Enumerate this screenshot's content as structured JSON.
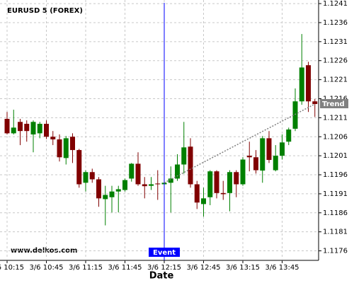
{
  "chart_data": {
    "type": "candlestick",
    "title": "EURUSD 5 (FOREX)",
    "xlabel": "Date",
    "watermark": "www.delkos.com",
    "x": [
      "3/6 10:15",
      "3/6 10:20",
      "3/6 10:25",
      "3/6 10:30",
      "3/6 10:35",
      "3/6 10:40",
      "3/6 10:45",
      "3/6 10:50",
      "3/6 10:55",
      "3/6 11:00",
      "3/6 11:05",
      "3/6 11:10",
      "3/6 11:15",
      "3/6 11:20",
      "3/6 11:25",
      "3/6 11:30",
      "3/6 11:35",
      "3/6 11:40",
      "3/6 11:45",
      "3/6 11:50",
      "3/6 11:55",
      "3/6 12:00",
      "3/6 12:05",
      "3/6 12:10",
      "3/6 12:15",
      "3/6 12:20",
      "3/6 12:25",
      "3/6 12:30",
      "3/6 12:35",
      "3/6 12:40",
      "3/6 12:45",
      "3/6 12:50",
      "3/6 12:55",
      "3/6 13:00",
      "3/6 13:05",
      "3/6 13:10",
      "3/6 13:15",
      "3/6 13:20",
      "3/6 13:25",
      "3/6 13:30",
      "3/6 13:35",
      "3/6 13:40",
      "3/6 13:45",
      "3/6 13:50",
      "3/6 13:55",
      "3/6 14:00",
      "3/6 14:05",
      "3/6 14:10"
    ],
    "open": [
      1.12107,
      1.12069,
      1.12099,
      1.12094,
      1.12066,
      1.12069,
      1.12094,
      1.1206,
      1.12053,
      1.12004,
      1.1206,
      1.12025,
      1.11939,
      1.11967,
      1.11948,
      1.11896,
      1.11901,
      1.11916,
      1.1192,
      1.1195,
      1.11989,
      1.11935,
      1.11931,
      1.11937,
      1.11935,
      1.11939,
      1.1195,
      1.11987,
      1.12034,
      1.11935,
      1.11883,
      1.11901,
      1.11969,
      1.11912,
      1.11912,
      1.11967,
      1.11935,
      1.1201,
      1.12006,
      1.11971,
      1.12056,
      1.11972,
      1.1201,
      1.12047,
      1.12081,
      1.12153,
      1.12248,
      1.12153
    ],
    "high": [
      1.12125,
      1.12131,
      1.12107,
      1.12103,
      1.12103,
      1.12099,
      1.12103,
      1.12075,
      1.12066,
      1.12062,
      1.12069,
      1.12028,
      1.11972,
      1.11976,
      1.11954,
      1.11931,
      1.11931,
      1.11931,
      1.1195,
      1.11991,
      1.12019,
      1.11954,
      1.11954,
      1.11972,
      1.11944,
      1.11982,
      1.12014,
      1.12099,
      1.12056,
      1.11944,
      1.11926,
      1.11972,
      1.11972,
      1.11944,
      1.11972,
      1.11972,
      1.12006,
      1.12047,
      1.12025,
      1.12062,
      1.12075,
      1.12038,
      1.12066,
      1.12084,
      1.12187,
      1.1233,
      1.12257,
      1.12159
    ],
    "low": [
      1.12066,
      1.12066,
      1.12038,
      1.12047,
      1.12019,
      1.12056,
      1.12054,
      1.12038,
      1.11995,
      1.11987,
      1.11991,
      1.11926,
      1.11916,
      1.11939,
      1.11876,
      1.11827,
      1.11861,
      1.11861,
      1.11916,
      1.11942,
      1.11931,
      1.11898,
      1.1192,
      1.11894,
      1.11931,
      1.11861,
      1.11944,
      1.11963,
      1.11926,
      1.1187,
      1.1185,
      1.1188,
      1.11898,
      1.11894,
      1.11864,
      1.11901,
      1.11931,
      1.11969,
      1.11963,
      1.11939,
      1.11991,
      1.11969,
      1.12,
      1.12038,
      1.12075,
      1.12144,
      1.12125,
      1.12112
    ],
    "close": [
      1.12069,
      1.12084,
      1.12075,
      1.12075,
      1.12099,
      1.12094,
      1.1206,
      1.12053,
      1.12006,
      1.12056,
      1.12025,
      1.11935,
      1.11967,
      1.11948,
      1.11898,
      1.11907,
      1.11916,
      1.11922,
      1.11946,
      1.11989,
      1.11935,
      1.1193,
      1.11935,
      1.11935,
      1.11939,
      1.1195,
      1.11987,
      1.12032,
      1.11935,
      1.11887,
      1.11898,
      1.11969,
      1.11912,
      1.11909,
      1.11967,
      1.11935,
      1.12,
      1.12006,
      1.11972,
      1.12056,
      1.11999,
      1.1201,
      1.12045,
      1.12079,
      1.12153,
      1.12242,
      1.12153,
      1.12146
    ],
    "up_color": "#008000",
    "down_color": "#800000",
    "ylim": [
      1.11735,
      1.12412
    ],
    "yticks": [
      1.1241,
      1.1236,
      1.1231,
      1.1226,
      1.1221,
      1.1216,
      1.1211,
      1.1206,
      1.1201,
      1.1196,
      1.1191,
      1.1186,
      1.1181,
      1.1176
    ],
    "xticks": [
      "3/6 10:15",
      "3/6 10:45",
      "3/6 11:15",
      "3/6 11:45",
      "3/6 12:15",
      "3/6 12:45",
      "3/6 13:15",
      "3/6 13:45"
    ],
    "grid": true,
    "event": {
      "label": "Event",
      "x": "3/6 12:15",
      "color": "#0000ff"
    },
    "trend": {
      "label": "Trend",
      "x": [
        "3/6 12:15",
        "3/6 14:10"
      ],
      "y": [
        1.11939,
        1.12146
      ],
      "color": "#808080"
    }
  }
}
